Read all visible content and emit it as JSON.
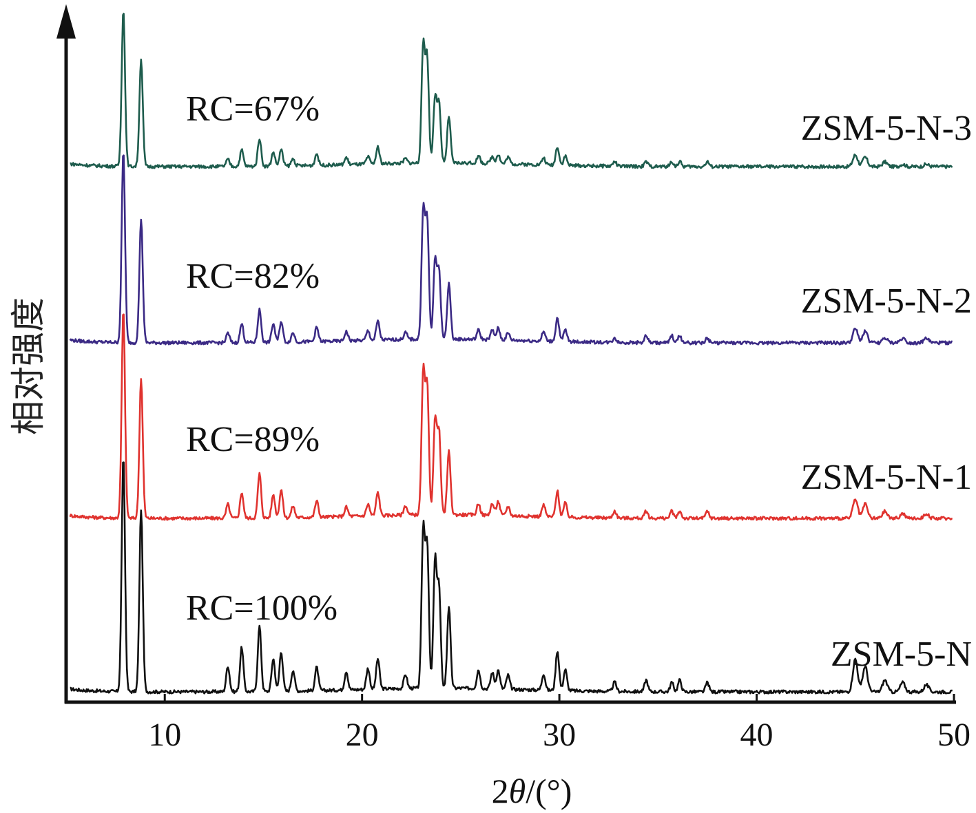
{
  "chart_data": {
    "type": "line",
    "xlabel_prefix": "2",
    "xlabel_theta": "θ",
    "xlabel_suffix": "/(°)",
    "ylabel": "相对强度",
    "xlim": [
      5,
      50
    ],
    "xticks": [
      10,
      20,
      30,
      40,
      50
    ],
    "grid": false,
    "legend": "labels placed at the right end of each curve",
    "peak_positions_2theta": [
      7.9,
      8.8,
      13.2,
      13.9,
      14.8,
      15.5,
      15.9,
      16.5,
      17.7,
      19.2,
      20.3,
      20.8,
      22.2,
      23.1,
      23.3,
      23.7,
      23.9,
      24.4,
      25.9,
      26.6,
      26.9,
      27.4,
      29.2,
      29.9,
      30.3,
      32.8,
      34.4,
      35.7,
      36.1,
      37.5,
      45.0,
      45.5,
      46.5,
      47.4,
      48.6
    ],
    "series": [
      {
        "name": "ZSM-5-N",
        "rc_label": "RC=100%",
        "color": "#111111",
        "intensities": [
          100,
          78,
          11,
          19,
          28,
          14,
          17,
          9,
          10,
          8,
          9,
          13,
          6,
          67,
          60,
          54,
          42,
          35,
          8,
          7,
          8,
          6,
          7,
          17,
          9,
          4,
          5,
          4,
          5,
          4,
          14,
          11,
          5,
          4,
          3
        ]
      },
      {
        "name": "ZSM-5-N-1",
        "rc_label": "RC=89%",
        "color": "#e0332f",
        "intensities": [
          89,
          60,
          6,
          11,
          19,
          10,
          12,
          5,
          7,
          4,
          5,
          10,
          4,
          60,
          54,
          40,
          35,
          27,
          5,
          5,
          6,
          4,
          5,
          11,
          6,
          3,
          3,
          3,
          3,
          3,
          8,
          6,
          3,
          2,
          2
        ]
      },
      {
        "name": "ZSM-5-N-2",
        "rc_label": "RC=82%",
        "color": "#3b2a85",
        "intensities": [
          82,
          53,
          4,
          8,
          14,
          8,
          9,
          4,
          6,
          4,
          4,
          8,
          3,
          55,
          50,
          33,
          29,
          24,
          4,
          4,
          5,
          3,
          4,
          10,
          5,
          2,
          3,
          3,
          3,
          2,
          6,
          5,
          2,
          2,
          2
        ]
      },
      {
        "name": "ZSM-5-N-3",
        "rc_label": "RC=67%",
        "color": "#1e5c4d",
        "intensities": [
          67,
          46,
          3,
          7,
          12,
          6,
          7,
          3,
          5,
          3,
          3,
          7,
          2,
          50,
          44,
          28,
          25,
          20,
          3,
          3,
          4,
          3,
          3,
          8,
          4,
          2,
          2,
          2,
          2,
          2,
          5,
          4,
          2,
          1,
          1
        ]
      }
    ]
  }
}
